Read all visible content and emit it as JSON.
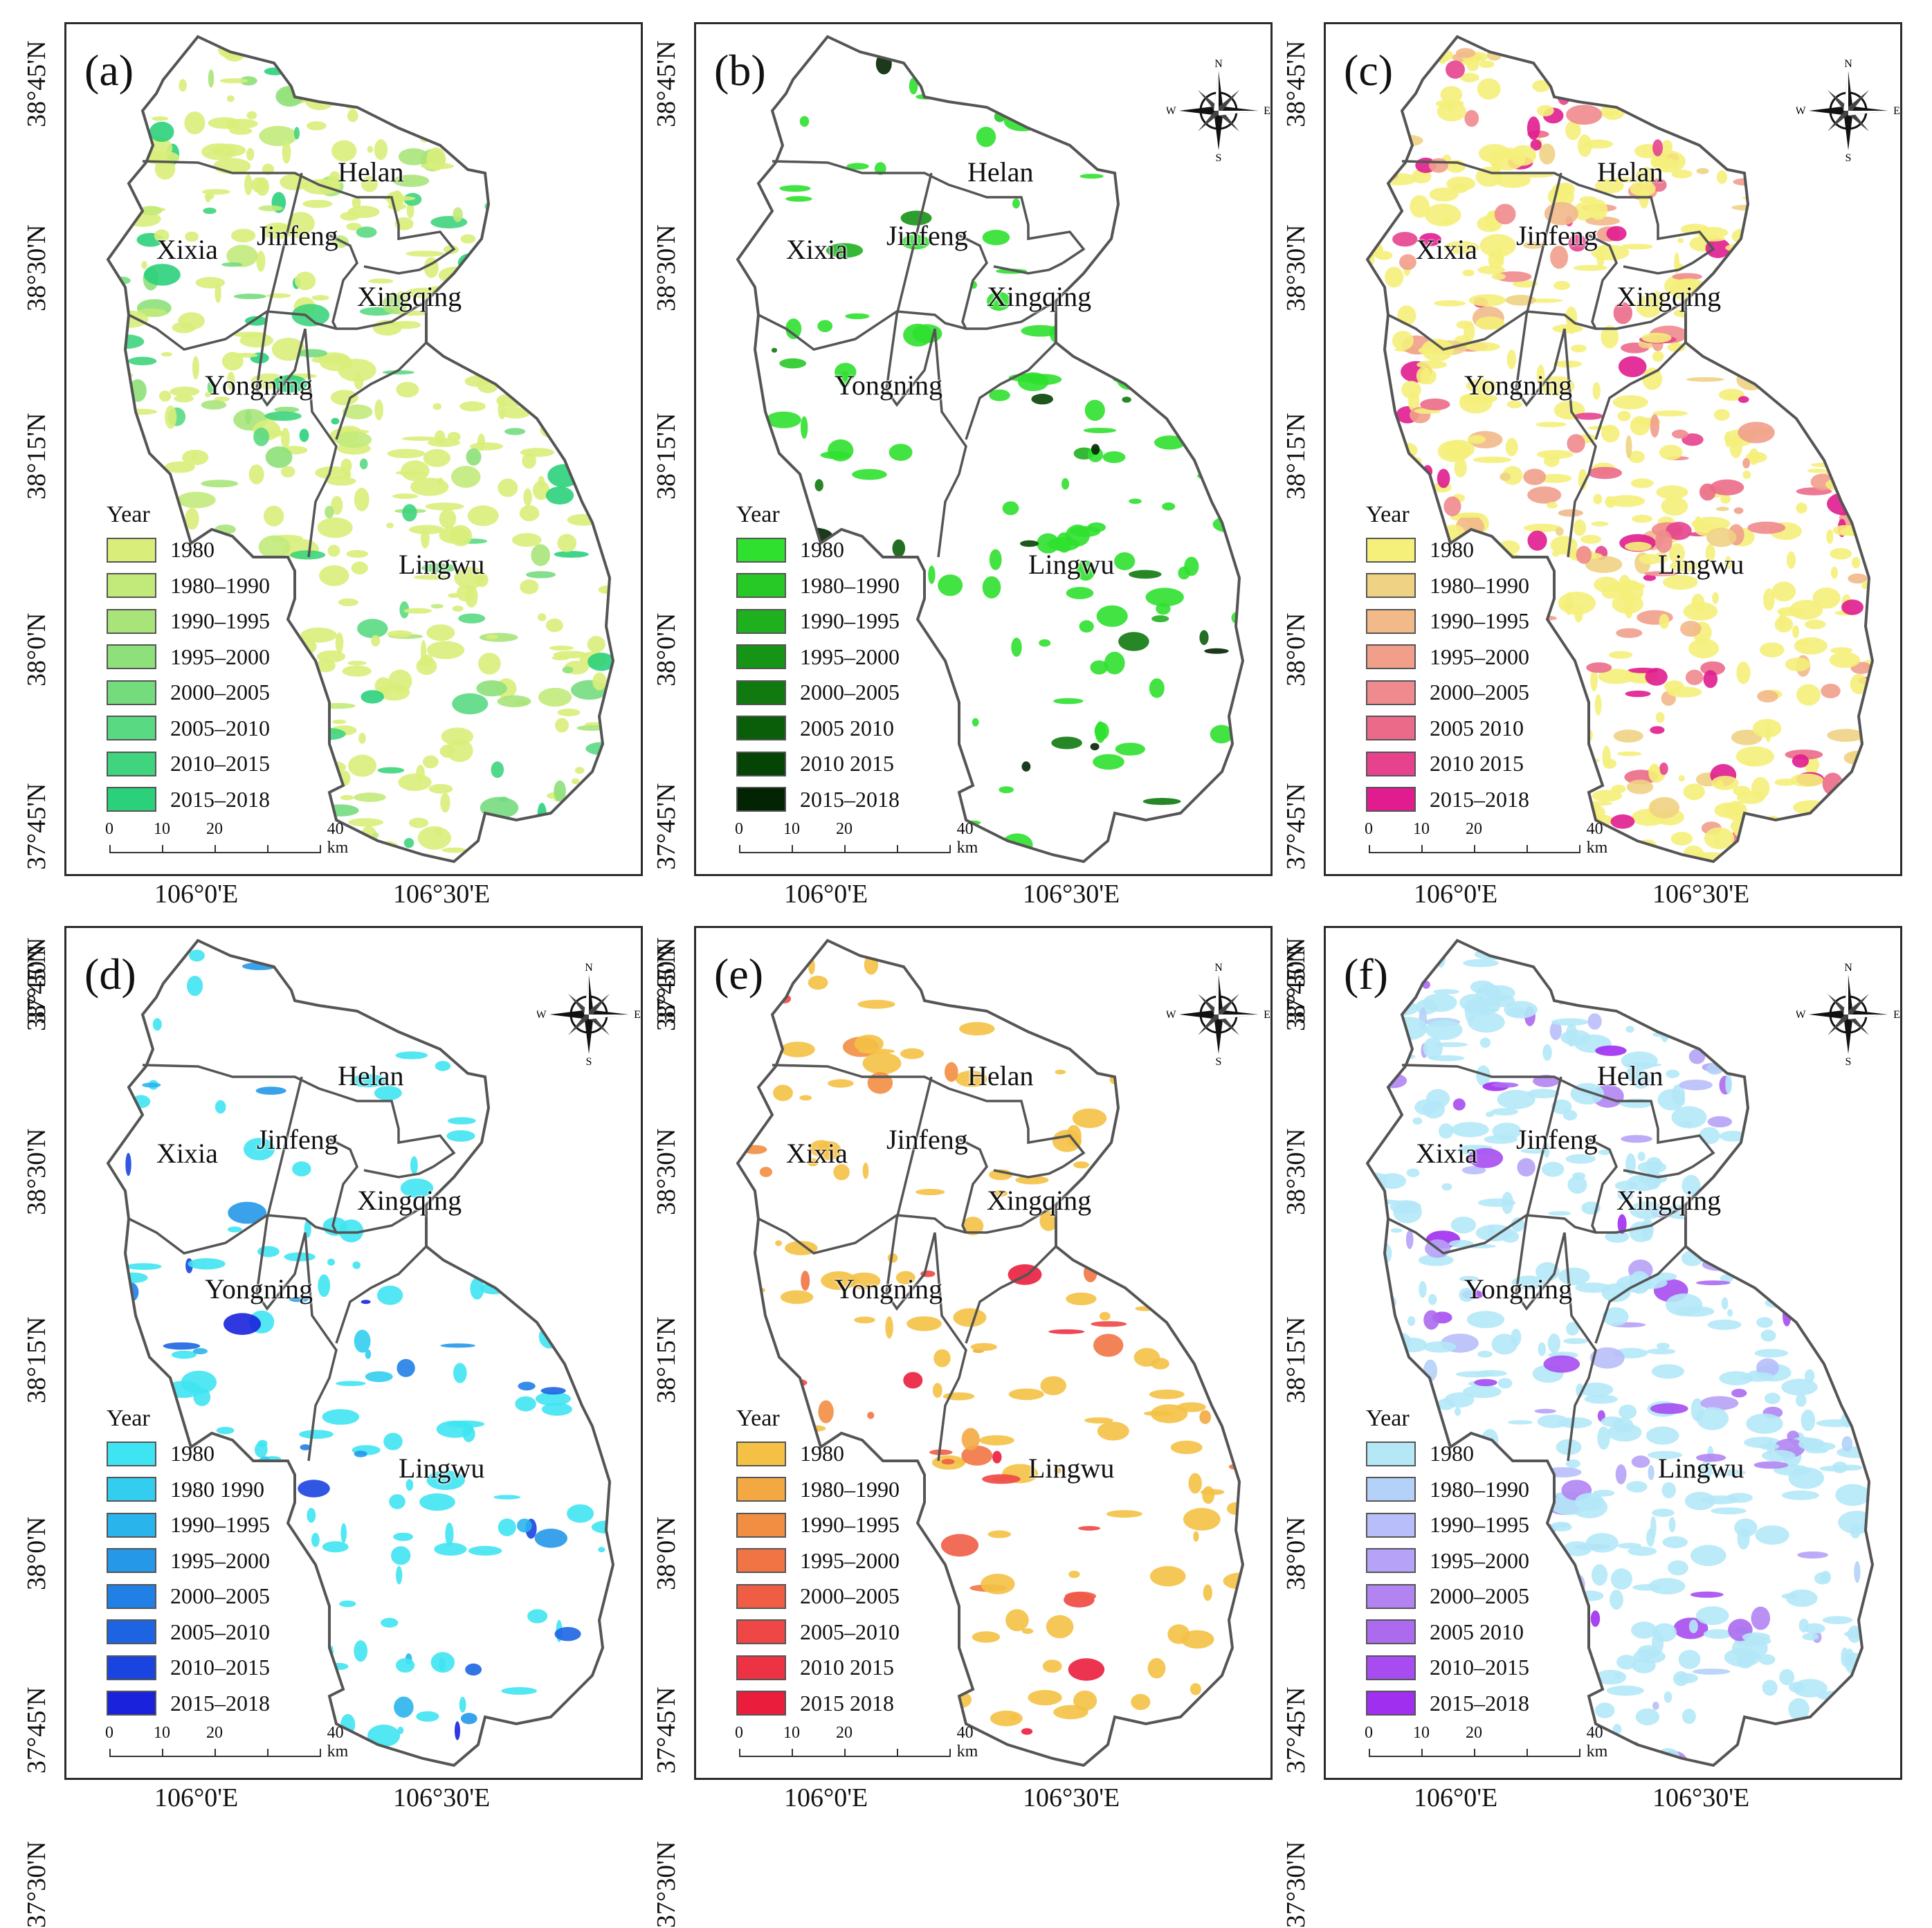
{
  "figure": {
    "districts": [
      "Helan",
      "Jinfeng",
      "Xixia",
      "Xingqing",
      "Yongning",
      "Lingwu"
    ],
    "legend_title": "Year",
    "scale": {
      "ticks": [
        "0",
        "10",
        "20",
        "40 km"
      ]
    },
    "compass": {
      "n": "N",
      "s": "S",
      "e": "E",
      "w": "W"
    },
    "lat_labels": [
      "38°45'N",
      "38°30'N",
      "38°15'N",
      "38°0'N",
      "37°45'N",
      "37°30'N"
    ],
    "lon_labels": [
      "106°0'E",
      "106°30'E"
    ]
  },
  "panels": [
    {
      "label": "(a)",
      "show_compass": false,
      "sparse_fill": "#c7e87a",
      "fill_density": 0.55,
      "legend": [
        {
          "text": "1980",
          "color": "#d9ee7a"
        },
        {
          "text": "1980–1990",
          "color": "#c2ea7a"
        },
        {
          "text": "1990–1995",
          "color": "#a8e479"
        },
        {
          "text": "1995–2000",
          "color": "#8ee07a"
        },
        {
          "text": "2000–2005",
          "color": "#75dc7e"
        },
        {
          "text": "2005–2010",
          "color": "#5ad983"
        },
        {
          "text": "2010–2015",
          "color": "#3fd47d"
        },
        {
          "text": "2015–2018",
          "color": "#2bd07b"
        }
      ]
    },
    {
      "label": "(b)",
      "show_compass": true,
      "sparse_fill": "#2fc23a",
      "fill_density": 0.12,
      "legend": [
        {
          "text": "1980",
          "color": "#2fe02f"
        },
        {
          "text": "1980–1990",
          "color": "#27c927"
        },
        {
          "text": "1990–1995",
          "color": "#1fb01f"
        },
        {
          "text": "1995–2000",
          "color": "#169416"
        },
        {
          "text": "2000–2005",
          "color": "#107a10"
        },
        {
          "text": "2005  2010",
          "color": "#0a5e0a"
        },
        {
          "text": "2010  2015",
          "color": "#064406"
        },
        {
          "text": "2015–2018",
          "color": "#022402"
        }
      ]
    },
    {
      "label": "(c)",
      "show_compass": true,
      "sparse_fill": "#f3ef7a",
      "fill_density": 0.7,
      "legend": [
        {
          "text": "1980",
          "color": "#f5f07a"
        },
        {
          "text": "1980–1990",
          "color": "#f0d284"
        },
        {
          "text": "1990–1995",
          "color": "#f2b989"
        },
        {
          "text": "1995–2000",
          "color": "#f19f8b"
        },
        {
          "text": "2000–2005",
          "color": "#ef8a8e"
        },
        {
          "text": "2005  2010",
          "color": "#eb6a8a"
        },
        {
          "text": "2010  2015",
          "color": "#e6428e"
        },
        {
          "text": "2015–2018",
          "color": "#e01c8e"
        }
      ]
    },
    {
      "label": "(d)",
      "show_compass": true,
      "sparse_fill": "#56d8ee",
      "fill_density": 0.14,
      "legend": [
        {
          "text": "1980",
          "color": "#3fe4f2"
        },
        {
          "text": "1980  1990",
          "color": "#32cdef"
        },
        {
          "text": "1990–1995",
          "color": "#2ab4ec"
        },
        {
          "text": "1995–2000",
          "color": "#2598e8"
        },
        {
          "text": "2000–2005",
          "color": "#2080e6"
        },
        {
          "text": "2005–2010",
          "color": "#1c64e2"
        },
        {
          "text": "2010–2015",
          "color": "#1a44e0"
        },
        {
          "text": "2015–2018",
          "color": "#1a22dc"
        }
      ]
    },
    {
      "label": "(e)",
      "show_compass": true,
      "sparse_fill": "#e93b2c",
      "fill_density": 0.16,
      "legend": [
        {
          "text": "1980",
          "color": "#f4c145"
        },
        {
          "text": "1980–1990",
          "color": "#f3a843"
        },
        {
          "text": "1990–1995",
          "color": "#f28e42"
        },
        {
          "text": "1995–2000",
          "color": "#f17544"
        },
        {
          "text": "2000–2005",
          "color": "#ef5d45"
        },
        {
          "text": "2005–2010",
          "color": "#ee4745"
        },
        {
          "text": "2010  2015",
          "color": "#ec3243"
        },
        {
          "text": "2015  2018",
          "color": "#ea1d3d"
        }
      ]
    },
    {
      "label": "(f)",
      "show_compass": true,
      "sparse_fill": "#a9e3f5",
      "fill_density": 0.6,
      "legend": [
        {
          "text": "1980",
          "color": "#b4e8f7"
        },
        {
          "text": "1980–1990",
          "color": "#b4d2f7"
        },
        {
          "text": "1990–1995",
          "color": "#b8befa"
        },
        {
          "text": "1995–2000",
          "color": "#b6a2f7"
        },
        {
          "text": "2000–2005",
          "color": "#b184f2"
        },
        {
          "text": "2005  2010",
          "color": "#ac6aef"
        },
        {
          "text": "2010–2015",
          "color": "#a64cf0"
        },
        {
          "text": "2015–2018",
          "color": "#a02ff0"
        }
      ]
    }
  ]
}
